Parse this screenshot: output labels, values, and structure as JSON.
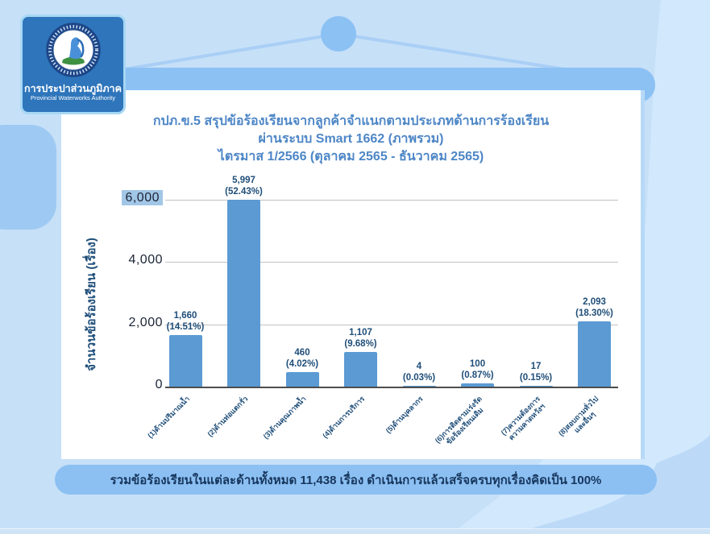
{
  "logo": {
    "org_th": "การประปาส่วนภูมิภาค",
    "org_en": "Provincial Waterworks Authority"
  },
  "title": {
    "line1": "กปภ.ข.5 สรุปข้อร้องเรียนจากลูกค้าจำแนกตามประเภทด้านการร้องเรียน",
    "line2": "ผ่านระบบ Smart 1662 (ภาพรวม)",
    "line3": "ไตรมาส 1/2566 (ตุลาคม 2565 - ธันวาคม 2565)"
  },
  "chart_data": {
    "type": "bar",
    "title": "กปภ.ข.5 สรุปข้อร้องเรียนจากลูกค้าจำแนกตามประเภทด้านการร้องเรียน ผ่านระบบ Smart 1662 (ภาพรวม) ไตรมาส 1/2566 (ตุลาคม 2565 - ธันวาคม 2565)",
    "ylabel": "จำนวนข้อร้องเรียน (เรื่อง)",
    "xlabel": "",
    "ylim": [
      0,
      6000
    ],
    "yticks": [
      0,
      2000,
      4000,
      6000
    ],
    "ytick_labels": [
      "0",
      "2,000",
      "4,000",
      "6,000"
    ],
    "highlighted_tick": "6,000",
    "grid": true,
    "legend": false,
    "bar_color": "#5b9ad3",
    "categories": [
      [
        "(1)ด้านปริมาณน้ำ"
      ],
      [
        "(2)ด้านท่อแตกรั่ว"
      ],
      [
        "(3)ด้านคุณภาพน้ำ"
      ],
      [
        "(4)ด้านการบริการ"
      ],
      [
        "(5)ด้านบุคลากร"
      ],
      [
        "(6)การติดตามเร่งรัด",
        "ข้อร้องเรียนเดิม"
      ],
      [
        "(7)ความต้องการ",
        "ความคาดหวังฯ"
      ],
      [
        "(8)สอบถามทั่วไป",
        "และอื่นๆ"
      ]
    ],
    "values": [
      1660,
      5997,
      460,
      1107,
      4,
      100,
      17,
      2093
    ],
    "value_labels": [
      "1,660",
      "5,997",
      "460",
      "1,107",
      "4",
      "100",
      "17",
      "2,093"
    ],
    "pct_labels": [
      "(14.51%)",
      "(52.43%)",
      "(4.02%)",
      "(9.68%)",
      "(0.03%)",
      "(0.87%)",
      "(0.15%)",
      "(18.30%)"
    ]
  },
  "footer": {
    "summary": "รวมข้อร้องเรียนในแต่ละด้านทั้งหมด 11,438 เรื่อง ดำเนินการแล้วเสร็จครบทุกเรื่องคิดเป็น 100%"
  },
  "colors": {
    "background": "#c6e0f8",
    "accent_blue": "#8cc1f4",
    "panel": "#ffffff",
    "bar": "#5b9ad3",
    "logo_bg": "#2e75bb",
    "title_text": "#4d86c6",
    "dark_text": "#1f4e79",
    "banner_text": "#17365d",
    "ytick_highlight": "#a2c6e6"
  }
}
